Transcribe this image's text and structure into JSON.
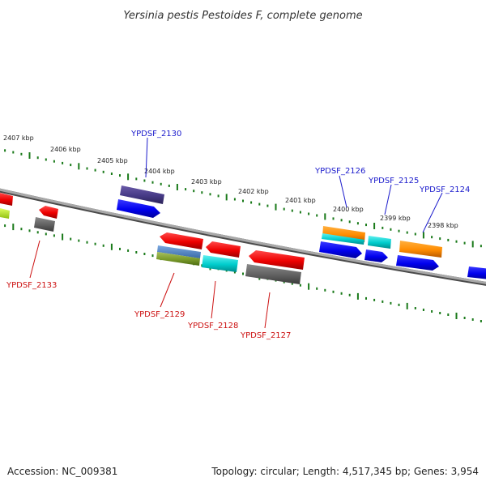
{
  "title": "Yersinia pestis Pestoides F, complete genome",
  "ruler": [
    "2407 kbp",
    "2406 kbp",
    "2405 kbp",
    "2404 kbp",
    "2403 kbp",
    "2402 kbp",
    "2401 kbp",
    "2400 kbp",
    "2399 kbp",
    "2398 kbp"
  ],
  "top_genes": [
    "YPDSF_2130",
    "YPDSF_2126",
    "YPDSF_2125",
    "YPDSF_2124"
  ],
  "bottom_genes": [
    "YPDSF_2133",
    "YPDSF_2129",
    "YPDSF_2128",
    "YPDSF_2127"
  ],
  "footer": {
    "accession": "Accession: NC_009381",
    "summary": "Topology: circular; Length: 4,517,345 bp; Genes: 3,954"
  },
  "colors": {
    "forward_label": "#1a1acc",
    "reverse_label": "#cc1111",
    "ticks": "#1a7a1a",
    "backbone": "#8a8a8a"
  }
}
